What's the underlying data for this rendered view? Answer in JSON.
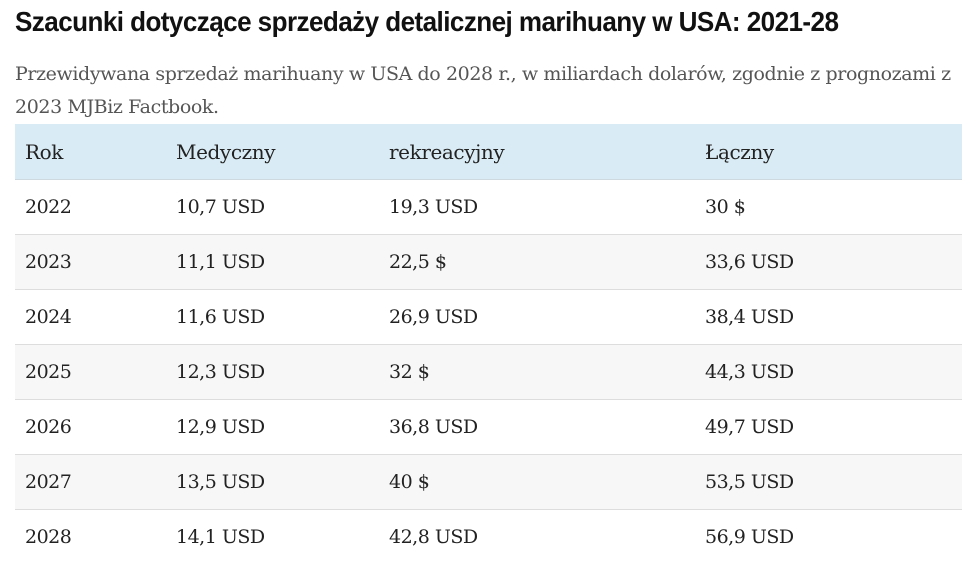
{
  "title": "Szacunki dotyczące sprzedaży detalicznej marihuany w USA: 2021-28",
  "subtitle": "Przewidywana sprzedaż marihuany w USA do 2028 r., w miliardach dolarów, zgodnie z prognozami z 2023 MJBiz Factbook.",
  "table": {
    "headers": [
      "Rok",
      "Medyczny",
      "rekreacyjny",
      "Łączny"
    ],
    "rows": [
      [
        "2022",
        "10,7 USD",
        "19,3 USD",
        "30 $"
      ],
      [
        "2023",
        "11,1 USD",
        "22,5 $",
        "33,6 USD"
      ],
      [
        "2024",
        "11,6 USD",
        "26,9 USD",
        "38,4 USD"
      ],
      [
        "2025",
        "12,3 USD",
        "32 $",
        "44,3 USD"
      ],
      [
        "2026",
        "12,9 USD",
        "36,8 USD",
        "49,7 USD"
      ],
      [
        "2027",
        "13,5 USD",
        "40 $",
        "53,5 USD"
      ],
      [
        "2028",
        "14,1 USD",
        "42,8 USD",
        "56,9 USD"
      ]
    ]
  },
  "colors": {
    "header_bg": "#d9ebf4",
    "row_alt_bg": "#f7f7f7",
    "text": "#222222",
    "subtitle": "#555555"
  }
}
